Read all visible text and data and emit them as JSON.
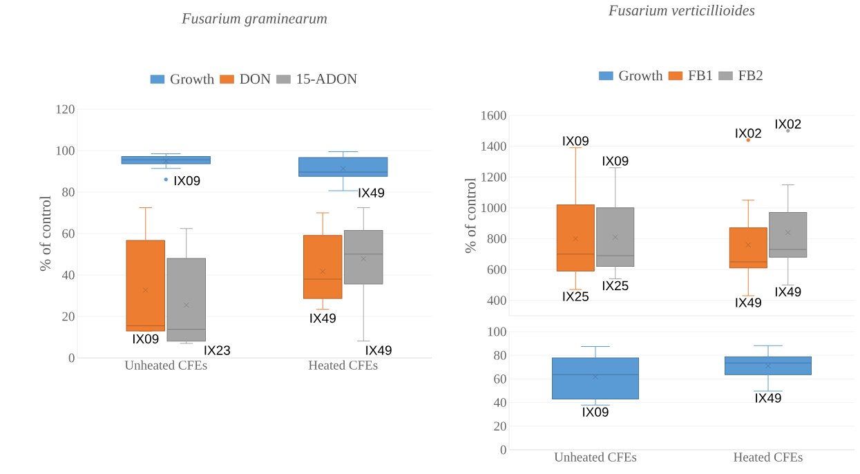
{
  "chart_data": [
    {
      "type": "box",
      "title": "Fusarium graminearum",
      "ylabel": "% of control",
      "categories": [
        "Unheated CFEs",
        "Heated CFEs"
      ],
      "ylim": [
        0,
        120
      ],
      "yticks": [
        0,
        20,
        40,
        60,
        80,
        100,
        120
      ],
      "grid": "y",
      "legend": "top",
      "series": [
        {
          "name": "Growth",
          "color": "#5b9bd5",
          "boxes": [
            {
              "low": 91.4,
              "q1": 93.7,
              "median": 95.6,
              "q3": 97.2,
              "high": 98.5,
              "mean": 95,
              "outliers": [
                86.1
              ]
            },
            {
              "low": 80.7,
              "q1": 87.6,
              "median": 89.7,
              "q3": 96.7,
              "high": 99.5,
              "mean": 91.3
            }
          ]
        },
        {
          "name": "DON",
          "color": "#ed7d31",
          "boxes": [
            {
              "low": 12.8,
              "q1": 13,
              "median": 15.5,
              "q3": 56.7,
              "high": 72.5,
              "mean": 32.7
            },
            {
              "low": 23.4,
              "q1": 28.7,
              "median": 38,
              "q3": 59.1,
              "high": 70,
              "mean": 41.7
            }
          ]
        },
        {
          "name": "15-ADON",
          "color": "#a5a5a5",
          "boxes": [
            {
              "low": 7,
              "q1": 8.1,
              "median": 13.8,
              "q3": 48,
              "high": 62.4,
              "mean": 25.5
            },
            {
              "low": 8.2,
              "q1": 35.7,
              "median": 50.1,
              "q3": 61.5,
              "high": 72.5,
              "mean": 47.8
            }
          ]
        }
      ],
      "annotations": [
        "IX09",
        "IX49",
        "IX09",
        "IX23",
        "IX49",
        "IX49"
      ]
    },
    {
      "type": "box",
      "title": "Fusarium verticillioides",
      "ylabel": "% of control",
      "categories": [
        null,
        null
      ],
      "ylim": [
        300,
        1600
      ],
      "yticks": [
        400,
        600,
        800,
        1000,
        1200,
        1400,
        1600
      ],
      "grid": "y",
      "legend": "top",
      "tick_labels": "y",
      "series": [
        {
          "name": "Growth",
          "color": "#5b9bd5",
          "boxes": [
            null,
            null
          ]
        },
        {
          "name": "FB1",
          "color": "#ed7d31",
          "boxes": [
            {
              "low": 470,
              "q1": 590,
              "median": 700,
              "q3": 1020,
              "high": 1390,
              "mean": 800
            },
            {
              "low": 430,
              "q1": 610,
              "median": 650,
              "q3": 870,
              "high": 1050,
              "mean": 760,
              "outliers": [
                1440
              ]
            }
          ]
        },
        {
          "name": "FB2",
          "color": "#a5a5a5",
          "boxes": [
            {
              "low": 540,
              "q1": 620,
              "median": 690,
              "q3": 1000,
              "high": 1260,
              "mean": 810
            },
            {
              "low": 500,
              "q1": 680,
              "median": 730,
              "q3": 970,
              "high": 1150,
              "mean": 840,
              "outliers": [
                1500
              ]
            }
          ]
        }
      ],
      "annotations": [
        "IX09",
        "IX09",
        "IX25",
        "IX25",
        "IX02",
        "IX02",
        "IX49",
        "IX49"
      ]
    },
    {
      "type": "box",
      "categories": [
        "Unheated CFEs",
        "Heated CFEs"
      ],
      "ylim": [
        0,
        100
      ],
      "yticks": [
        0,
        20,
        40,
        60,
        80,
        100
      ],
      "grid": "y",
      "series": [
        {
          "color": "#5b9bd5",
          "boxes": [
            {
              "low": 37.8,
              "q1": 43,
              "median": 63.6,
              "q3": 77.8,
              "high": 87.4,
              "mean": 61.8
            },
            {
              "low": 49.7,
              "q1": 63.6,
              "median": 73.5,
              "q3": 78.7,
              "high": 88.1,
              "mean": 71
            }
          ]
        }
      ],
      "annotations": [
        "IX09",
        "IX49"
      ]
    }
  ]
}
